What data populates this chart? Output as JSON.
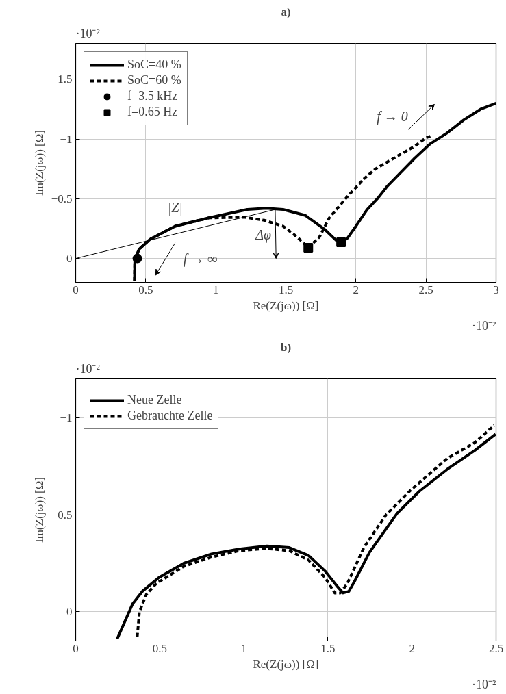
{
  "chart_data": [
    {
      "type": "line",
      "title": "a)",
      "xlabel": "Re(Z(jω)) [Ω]",
      "ylabel": "Im(Z(jω)) [Ω]",
      "xlim": [
        0,
        3
      ],
      "xticks": [
        0,
        0.5,
        1,
        1.5,
        2,
        2.5,
        3
      ],
      "ylim": [
        0.2,
        -1.8
      ],
      "yticks": [
        {
          "value": -1.5,
          "label": "−1.5"
        },
        {
          "value": -1,
          "label": "−1"
        },
        {
          "value": -0.5,
          "label": "−0.5"
        },
        0
      ],
      "grid": true,
      "legend": "top left",
      "series": [
        {
          "name": "SoC=40 %",
          "color": "#000000",
          "line_style": "solid",
          "x": [
            0.42,
            0.422,
            0.452,
            0.53,
            0.71,
            0.95,
            1.225,
            1.36,
            1.48,
            1.64,
            1.78,
            1.86,
            1.896,
            1.94,
            2.0,
            2.08,
            2.16,
            2.22,
            2.42,
            2.53,
            2.65,
            2.77,
            2.89,
            3.0
          ],
          "values": [
            0.19,
            0.016,
            -0.077,
            -0.16,
            -0.27,
            -0.34,
            -0.41,
            -0.42,
            -0.41,
            -0.36,
            -0.24,
            -0.15,
            -0.135,
            -0.17,
            -0.27,
            -0.41,
            -0.51,
            -0.6,
            -0.84,
            -0.96,
            -1.05,
            -1.16,
            -1.25,
            -1.3
          ]
        },
        {
          "name": "SoC=60 %",
          "color": "#000000",
          "line_style": "dashed",
          "x": [
            0.42,
            0.422,
            0.452,
            0.53,
            0.71,
            0.95,
            1.205,
            1.345,
            1.48,
            1.58,
            1.66,
            1.74,
            1.81,
            1.94,
            2.06,
            2.14,
            2.3,
            2.42,
            2.5,
            2.545
          ],
          "values": [
            0.19,
            0.016,
            -0.077,
            -0.16,
            -0.27,
            -0.34,
            -0.345,
            -0.32,
            -0.27,
            -0.18,
            -0.09,
            -0.18,
            -0.34,
            -0.52,
            -0.67,
            -0.75,
            -0.86,
            -0.94,
            -1.01,
            -1.03
          ]
        },
        {
          "type": "line",
          "color": "#000000",
          "line_style": "solid",
          "x": [
            0,
            1.424
          ],
          "values": [
            0,
            -0.41
          ]
        },
        {
          "type": "scatter",
          "name": "f=3.5 kHz",
          "color": "#000000",
          "marker": "circle",
          "x": [
            0.44
          ],
          "values": [
            0
          ]
        },
        {
          "type": "scatter",
          "name": "f=0.65 Hz",
          "color": "#000000",
          "marker": "square",
          "x": [
            1.66,
            1.894
          ],
          "values": [
            -0.09,
            -0.135
          ]
        }
      ],
      "annotations": [
        "·10⁻²",
        "·10⁻²",
        "|Z|",
        "Δφ",
        "f → ∞",
        "f → 0"
      ]
    },
    {
      "type": "line",
      "title": "b)",
      "xlabel": "Re(Z(jω)) [Ω]",
      "ylabel": "Im(Z(jω)) [Ω]",
      "xlim": [
        0,
        2.5
      ],
      "xticks": [
        0,
        0.5,
        1,
        1.5,
        2,
        2.5
      ],
      "ylim": [
        0.15,
        -1.2
      ],
      "yticks": [
        {
          "value": -1,
          "label": "−1"
        },
        {
          "value": -0.5,
          "label": "−0.5"
        },
        0
      ],
      "grid": true,
      "legend": "top left",
      "series": [
        {
          "name": "Neue Zelle",
          "color": "#000000",
          "line_style": "solid",
          "x": [
            0.247,
            0.338,
            0.396,
            0.495,
            0.643,
            0.808,
            0.972,
            1.137,
            1.27,
            1.385,
            1.483,
            1.55,
            1.59,
            1.624,
            1.656,
            1.747,
            1.912,
            2.044,
            2.209,
            2.373,
            2.497
          ],
          "values": [
            0.139,
            -0.04,
            -0.105,
            -0.177,
            -0.25,
            -0.298,
            -0.323,
            -0.339,
            -0.331,
            -0.29,
            -0.21,
            -0.137,
            -0.097,
            -0.105,
            -0.153,
            -0.306,
            -0.508,
            -0.621,
            -0.734,
            -0.831,
            -0.915
          ]
        },
        {
          "name": "Gebrauchte Zelle",
          "color": "#000000",
          "line_style": "dashed",
          "x": [
            0.366,
            0.379,
            0.42,
            0.478,
            0.643,
            0.808,
            0.972,
            1.137,
            1.27,
            1.385,
            1.483,
            1.541,
            1.574,
            1.615,
            1.714,
            1.846,
            1.995,
            2.209,
            2.373,
            2.489
          ],
          "values": [
            0.129,
            0.0,
            -0.089,
            -0.145,
            -0.234,
            -0.282,
            -0.315,
            -0.326,
            -0.315,
            -0.266,
            -0.177,
            -0.097,
            -0.097,
            -0.145,
            -0.331,
            -0.5,
            -0.629,
            -0.79,
            -0.871,
            -0.96
          ]
        }
      ],
      "annotations": [
        "·10⁻²",
        "·10⁻²"
      ]
    }
  ]
}
